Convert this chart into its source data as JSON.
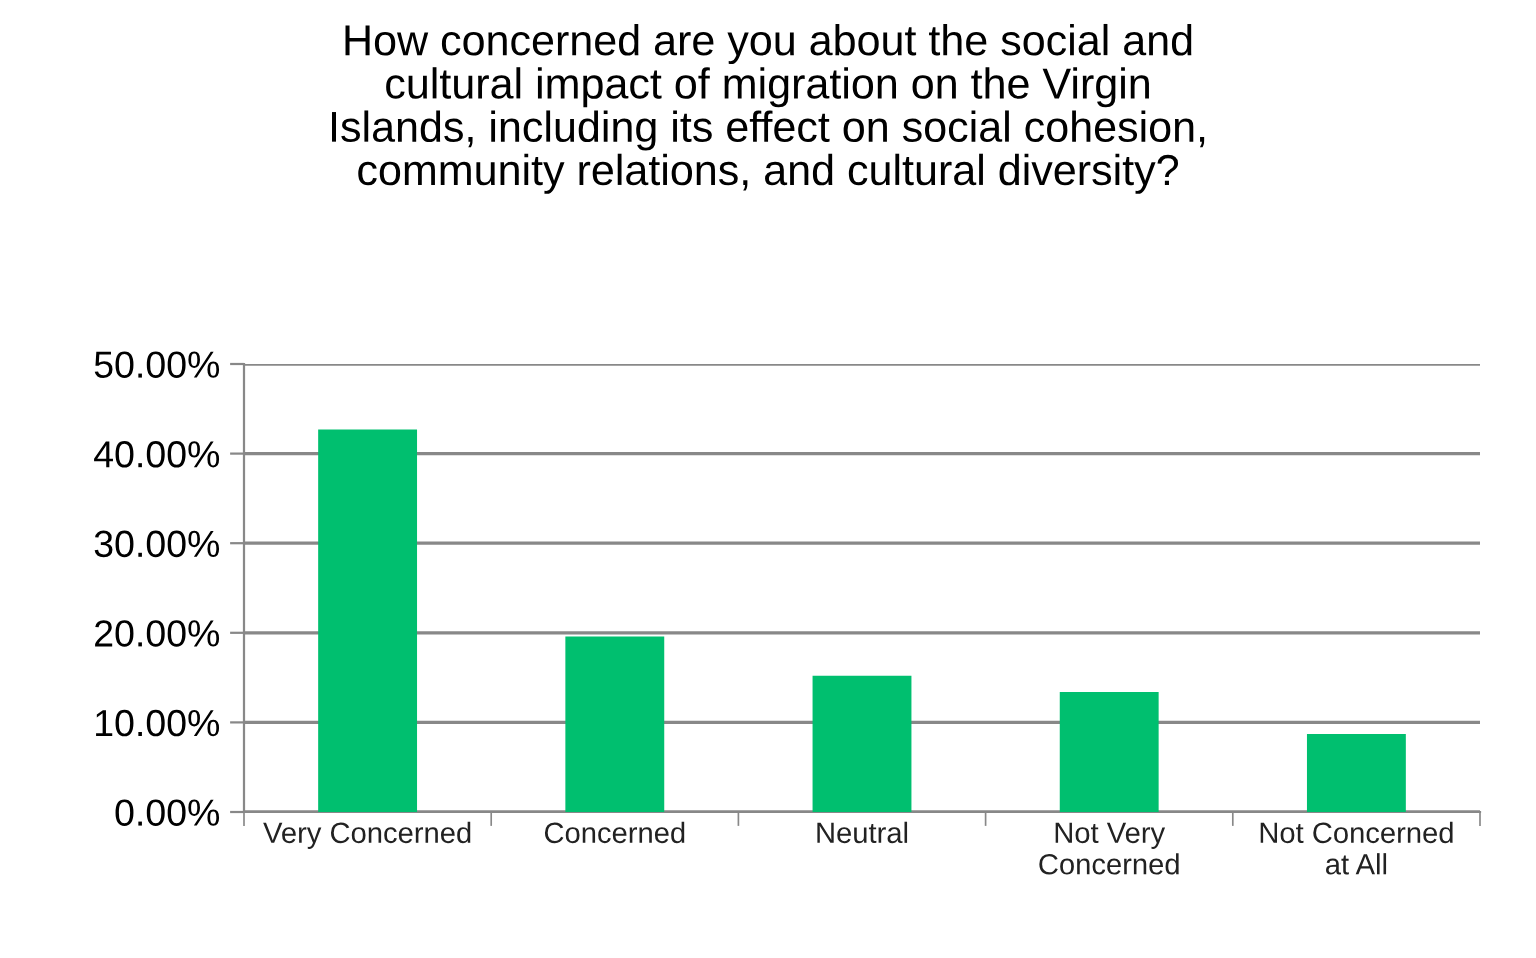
{
  "chart_data": {
    "type": "bar",
    "title": "How concerned are you about the social and\ncultural impact of migration on the Virgin\nIslands, including its effect on social cohesion,\ncommunity relations, and cultural diversity?",
    "categories": [
      "Very Concerned",
      "Concerned",
      "Neutral",
      "Not Very\nConcerned",
      "Not Concerned\nat All"
    ],
    "values": [
      42.7,
      19.6,
      15.2,
      13.4,
      8.7
    ],
    "color": "#00bf6f",
    "ylim": [
      0,
      50
    ],
    "yticks": [
      {
        "value": 0,
        "label": "0.00%"
      },
      {
        "value": 10,
        "label": "10.00%"
      },
      {
        "value": 20,
        "label": "20.00%"
      },
      {
        "value": 30,
        "label": "30.00%"
      },
      {
        "value": 40,
        "label": "40.00%"
      },
      {
        "value": 50,
        "label": "50.00%"
      }
    ],
    "grid": "y"
  }
}
